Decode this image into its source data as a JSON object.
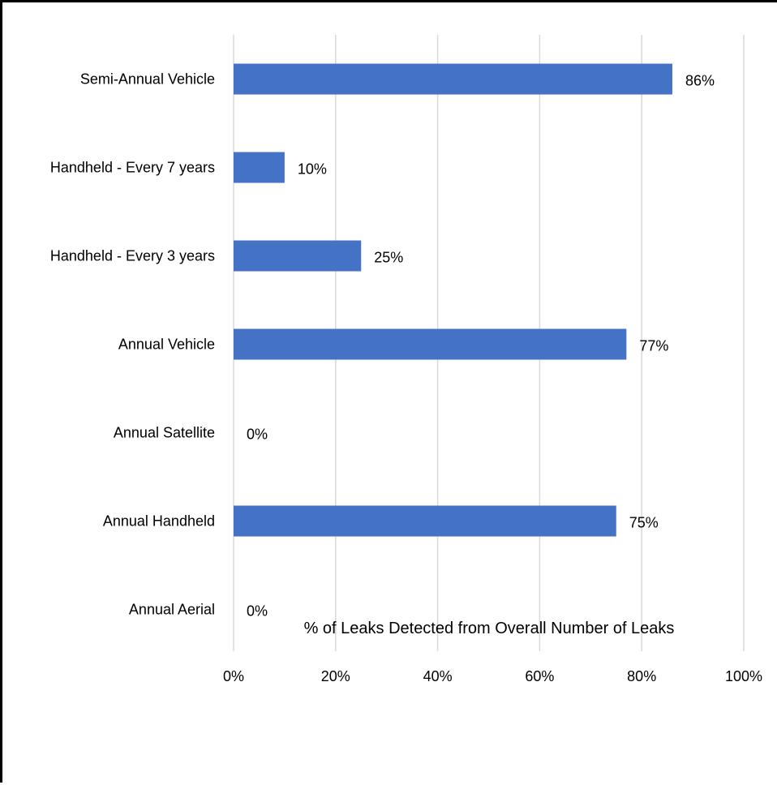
{
  "chart_data": {
    "type": "bar",
    "orientation": "horizontal",
    "categories": [
      "Semi-Annual Vehicle",
      "Handheld - Every 7 years",
      "Handheld - Every 3 years",
      "Annual Vehicle",
      "Annual Satellite",
      "Annual Handheld",
      "Annual Aerial"
    ],
    "values": [
      86,
      10,
      25,
      77,
      0,
      75,
      0
    ],
    "data_labels": [
      "86%",
      "10%",
      "25%",
      "77%",
      "0%",
      "75%",
      "0%"
    ],
    "xlabel": "% of Leaks Detected from Overall Number of Leaks",
    "ylabel": "",
    "xlim": [
      0,
      100
    ],
    "x_ticks": [
      0,
      20,
      40,
      60,
      80,
      100
    ],
    "x_tick_labels": [
      "0%",
      "20%",
      "40%",
      "60%",
      "80%",
      "100%"
    ],
    "grid": true,
    "legend": "none",
    "bar_color": "#4472C4"
  }
}
